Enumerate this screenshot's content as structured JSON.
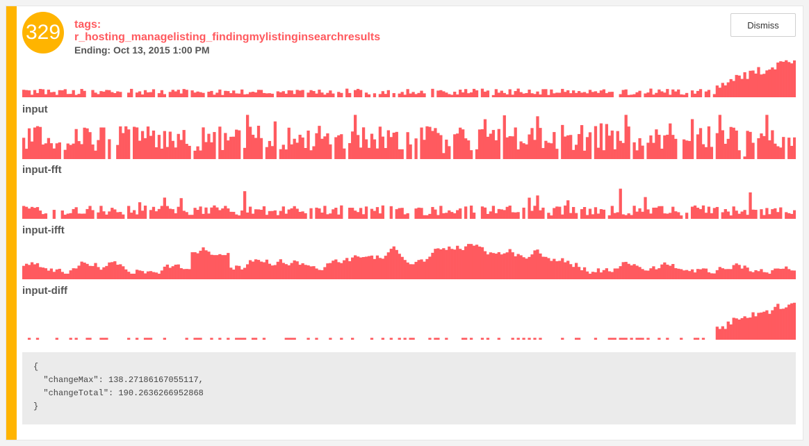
{
  "header": {
    "score": "329",
    "tags_label": "tags:",
    "tags_value": "r_hosting_managelisting_findingmylistinginsearchresults",
    "ending": "Ending: Oct 13, 2015 1:00 PM",
    "dismiss_label": "Dismiss"
  },
  "colors": {
    "accent": "#ffb400",
    "bars": "#ff5a5f",
    "json_bg": "#ebebeb"
  },
  "charts": [
    {
      "label": "",
      "name": "main-chart"
    },
    {
      "label": "input",
      "name": "input-chart"
    },
    {
      "label": "input-fft",
      "name": "input-fft-chart"
    },
    {
      "label": "input-ifft",
      "name": "input-ifft-chart"
    },
    {
      "label": "input-diff",
      "name": "input-diff-chart"
    }
  ],
  "json": {
    "open": "{",
    "line1": "  \"changeMax\": 138.27186167055117,",
    "line2": "  \"changeTotal\": 190.2636266952868",
    "close": "}"
  }
}
